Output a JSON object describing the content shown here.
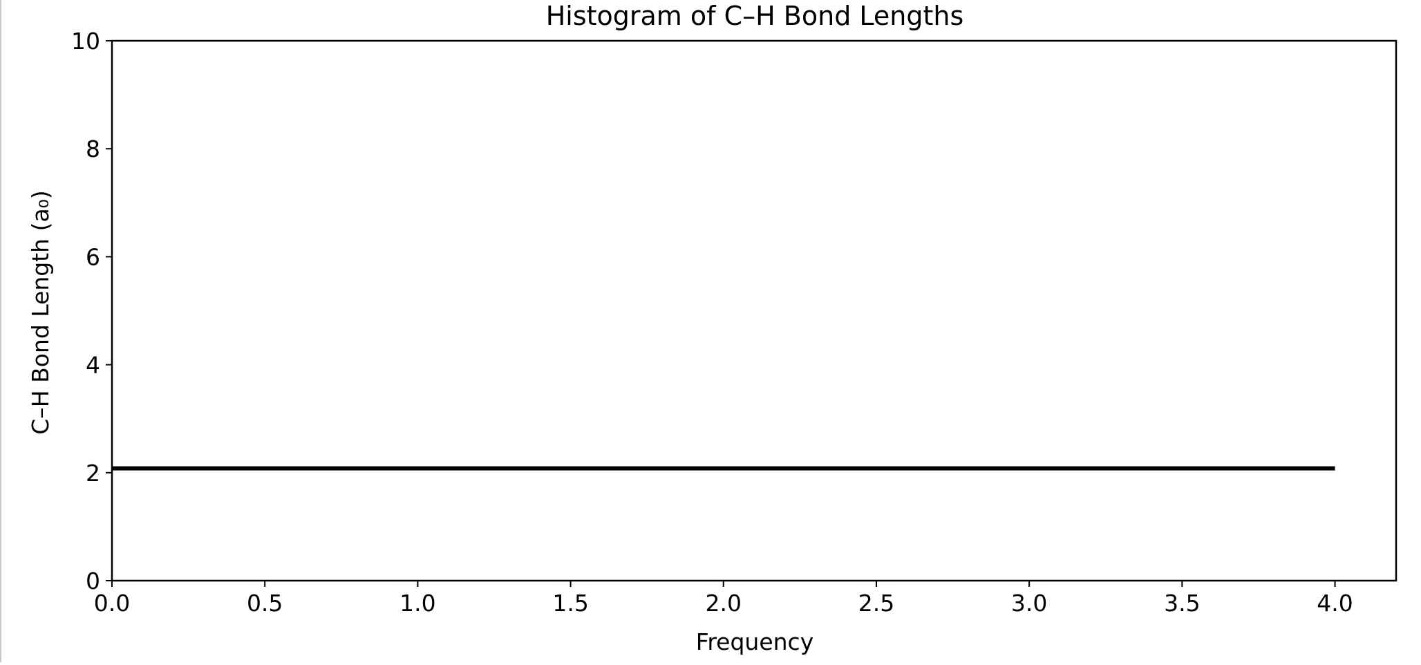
{
  "chart_data": {
    "type": "bar",
    "orientation": "horizontal",
    "title": "Histogram of C–H Bond Lengths",
    "xlabel": "Frequency",
    "ylabel": "C–H Bond Length (a₀)",
    "xlim": [
      0,
      4.2
    ],
    "ylim": [
      0,
      10
    ],
    "xticks": [
      "0.0",
      "0.5",
      "1.0",
      "1.5",
      "2.0",
      "2.5",
      "3.0",
      "3.5",
      "4.0"
    ],
    "yticks": [
      "0",
      "2",
      "4",
      "6",
      "8",
      "10"
    ],
    "grid": false,
    "bars": [
      {
        "y": 2.08,
        "value": 4.0
      }
    ],
    "colors": {
      "bar": "#000000",
      "axes": "#000000"
    }
  }
}
